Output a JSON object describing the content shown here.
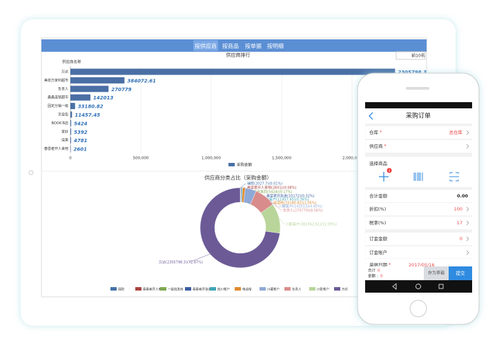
{
  "tabs": [
    "按供应商",
    "按商品",
    "按单据",
    "按明细"
  ],
  "chart_data": [
    {
      "type": "bar",
      "title": "供应商排行",
      "top_label": "前10名",
      "y_axis_title": "供应商名称",
      "categories": [
        "万达",
        "美泉万家利超市",
        "负责人",
        "鑫鑫连锁超市",
        "固定分销一级",
        "叉烧包",
        "BOOK书店",
        "家好",
        "佳美",
        "春雷者开人来吧"
      ],
      "series": [
        {
          "name": "采购金额",
          "color": "#4a6fa5",
          "values": [
            2305798.3,
            384072.61,
            270779,
            142013,
            33180.82,
            11457.45,
            5424,
            5392,
            4781,
            2601
          ]
        }
      ],
      "xlim": [
        0,
        2500000
      ],
      "xticks": [
        0,
        {
          "value": 500000,
          "label": "500,000"
        },
        {
          "value": 1000000,
          "label": "1,000,000"
        },
        {
          "value": 1500000,
          "label": "1,500,000"
        },
        {
          "value": 2000000,
          "label": "2,000,000"
        }
      ],
      "grid": true
    },
    {
      "type": "donut",
      "title": "供应商分类占比（采购金额）",
      "categories": [
        "瑞院",
        "春雷者开人来吧",
        "一级批发商",
        "春雷者开张进",
        "四川客户",
        "电话哈",
        "川藏客户",
        "负责人",
        "川影客户",
        "万达"
      ],
      "values": [
        2027.7,
        2601,
        5424,
        10172,
        11457.45,
        33180.82,
        142013,
        270779,
        382562.61,
        2305798.3
      ],
      "value_labels": [
        "瑞院(2027.7)(0.01%)",
        "春雷者开人来吧(2601)(0.08%)",
        "一级批发商(5424)(0.17%)",
        "春雷者开张进(10172)(0.32%)",
        "四川客户(11457.45)(0.36%)",
        "电话哈(33180.82)(1.05%)",
        "川藏客户(142013)(4.45%)",
        "负责人(270779)(8.56%)",
        "川影客户(382562.61)(12.09%)",
        "万达(2305798.3)(72.87%)"
      ],
      "colors": [
        "#4472a8",
        "#a94442",
        "#7fa84f",
        "#3a5fa0",
        "#3fa6b8",
        "#e08a2e",
        "#8fa9d6",
        "#d98c8c",
        "#b9d59a",
        "#6b5a96"
      ]
    }
  ],
  "phone": {
    "title": "采购订单",
    "required_mark": "*",
    "select_goods": "选择商品",
    "badge": "0",
    "rows": [
      {
        "label": "仓库",
        "required": true,
        "value": "总仓库",
        "arrow": true
      },
      {
        "label": "供应商",
        "required": true,
        "arrow": true
      },
      {
        "label": "合计金额",
        "value": "0.00"
      },
      {
        "label": "折扣(%)",
        "value": "100",
        "arrow": true
      },
      {
        "label": "税率(%)",
        "value": "17",
        "arrow": true
      },
      {
        "label": "订金金额",
        "value": "0",
        "arrow": true
      },
      {
        "label": "订金账户",
        "arrow": true
      },
      {
        "label": "单据日期",
        "required": true,
        "value": "2017/05/16"
      }
    ],
    "total_label": "合计",
    "total_value": "0",
    "amount_label": "金额 :",
    "amount_value": "0",
    "draft_button": "存为草稿",
    "submit_button": "提交"
  }
}
